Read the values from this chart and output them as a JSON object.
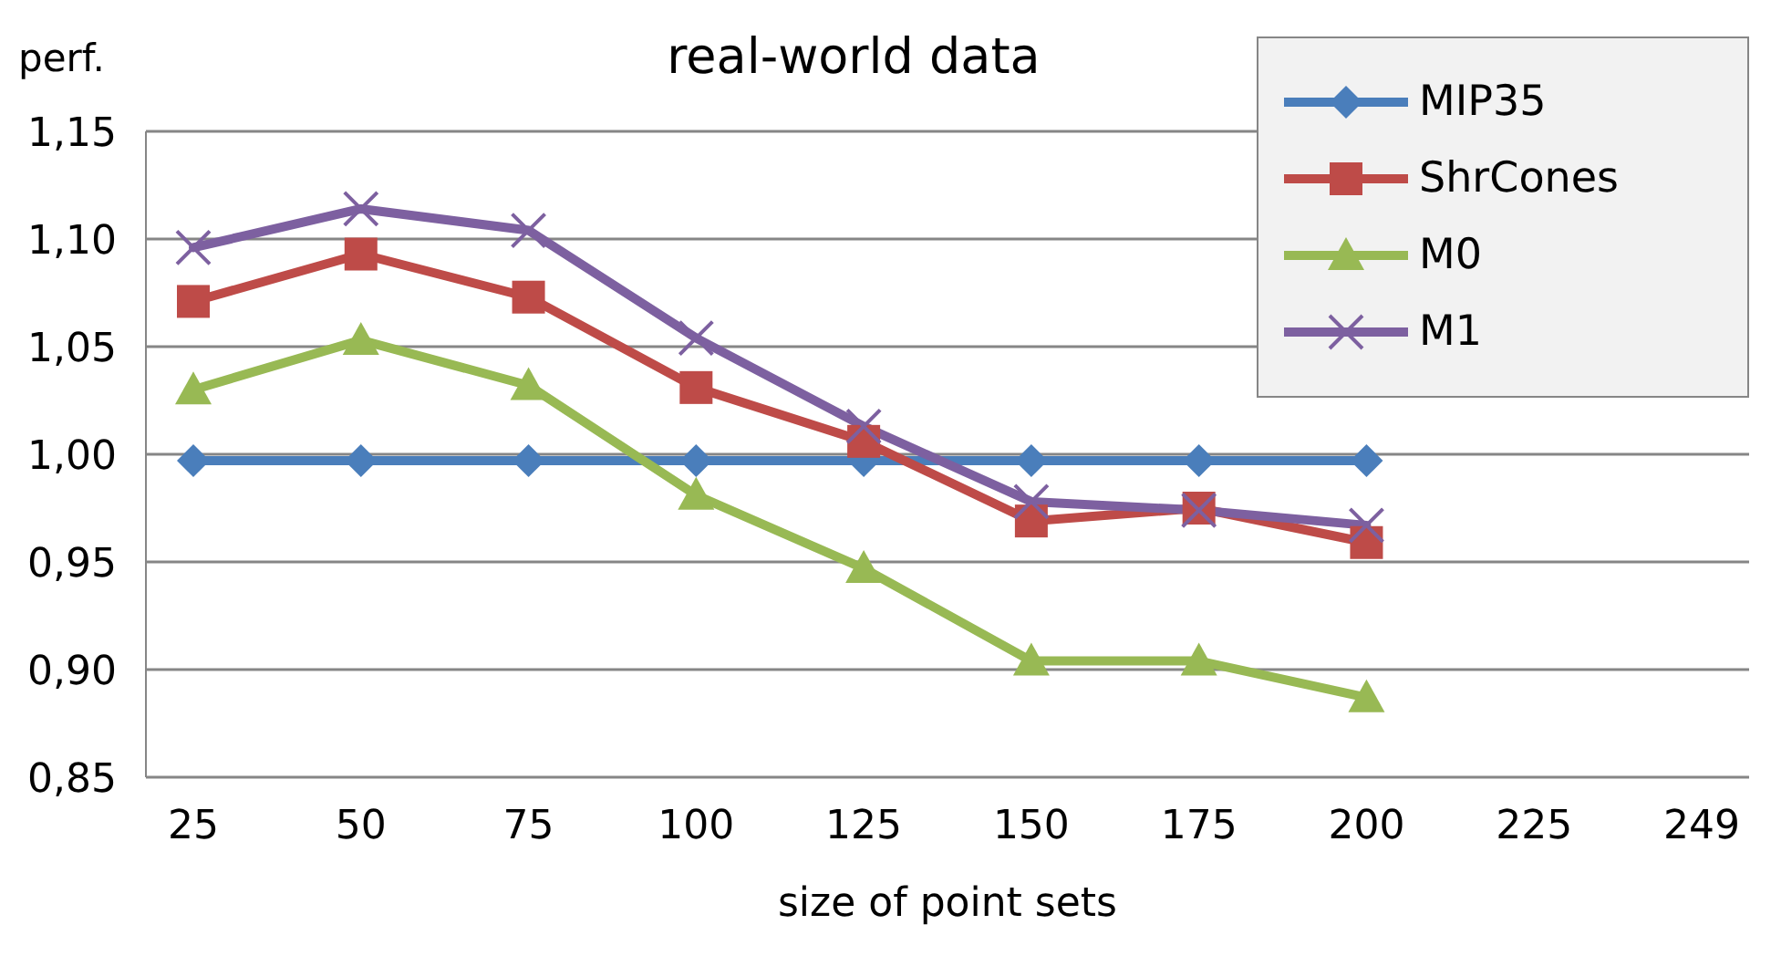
{
  "chart_data": {
    "type": "line",
    "title": "real-world data",
    "xlabel": "size of point sets",
    "ylabel": "perf.",
    "categories": [
      "25",
      "50",
      "75",
      "100",
      "125",
      "150",
      "175",
      "200",
      "225",
      "249"
    ],
    "ylim": [
      0.85,
      1.15
    ],
    "yticks": [
      {
        "value": 0.85,
        "label": "0,85"
      },
      {
        "value": 0.9,
        "label": "0,90"
      },
      {
        "value": 0.95,
        "label": "0,95"
      },
      {
        "value": 1.0,
        "label": "1,00"
      },
      {
        "value": 1.05,
        "label": "1,05"
      },
      {
        "value": 1.1,
        "label": "1,10"
      },
      {
        "value": 1.15,
        "label": "1,15"
      }
    ],
    "grid": "y",
    "legend": "top right",
    "series": [
      {
        "name": "MIP35",
        "color": "#4a7ebb",
        "marker": "diamond",
        "values": [
          0.997,
          0.997,
          0.997,
          0.997,
          0.997,
          0.997,
          0.997,
          0.997,
          null,
          null
        ]
      },
      {
        "name": "ShrCones",
        "color": "#be4b48",
        "marker": "square",
        "values": [
          1.071,
          1.093,
          1.073,
          1.031,
          1.006,
          0.969,
          0.975,
          0.959,
          null,
          null
        ]
      },
      {
        "name": "M0",
        "color": "#98b954",
        "marker": "triangle",
        "values": [
          1.03,
          1.053,
          1.032,
          0.981,
          0.947,
          0.904,
          0.904,
          0.887,
          null,
          null
        ]
      },
      {
        "name": "M1",
        "color": "#7d60a0",
        "marker": "cross",
        "values": [
          1.096,
          1.114,
          1.104,
          1.054,
          1.013,
          0.978,
          0.974,
          0.967,
          null,
          null
        ]
      }
    ]
  }
}
